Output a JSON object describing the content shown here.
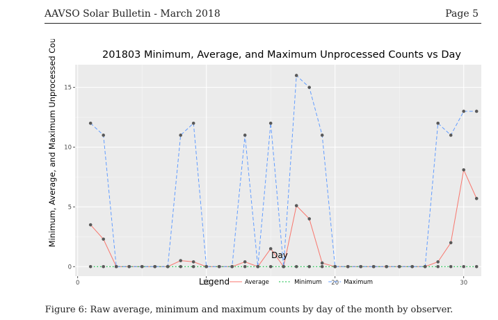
{
  "header": {
    "left": "AAVSO Solar Bulletin - March 2018",
    "right": "Page 5"
  },
  "caption": "Figure 6: Raw average, minimum and maximum counts by day of the month by observer.",
  "chart_data": {
    "type": "line",
    "title": "201803 Minimum, Average, and Maximum Unprocessed Counts vs Day",
    "xlabel": "Day",
    "ylabel": "Minimum, Average, and Maximum Unprocessed Counts",
    "xlim": [
      -0.2,
      31.8
    ],
    "ylim": [
      -0.8,
      16.9
    ],
    "xticks": [
      0,
      10,
      20,
      30
    ],
    "yticks": [
      0,
      5,
      10,
      15
    ],
    "grid": true,
    "legend": {
      "title": "Legend",
      "position": "bottom"
    },
    "x": [
      1,
      2,
      3,
      4,
      5,
      6,
      7,
      8,
      9,
      10,
      11,
      12,
      13,
      14,
      15,
      16,
      17,
      18,
      19,
      20,
      21,
      22,
      23,
      24,
      25,
      26,
      27,
      28,
      29,
      30,
      31
    ],
    "series": [
      {
        "name": "Average",
        "color": "#f8766d",
        "dash": "solid",
        "values": [
          3.5,
          2.3,
          0,
          0,
          0,
          0,
          0,
          0.5,
          0.4,
          0,
          0,
          0,
          0.4,
          0,
          1.5,
          0,
          5.1,
          4,
          0.3,
          0,
          0,
          0,
          0,
          0,
          0,
          0,
          0,
          0.4,
          2,
          8.1,
          5.7
        ]
      },
      {
        "name": "Minimum",
        "color": "#00ba38",
        "dash": "dotted",
        "values": [
          0,
          0,
          0,
          0,
          0,
          0,
          0,
          0,
          0,
          0,
          0,
          0,
          0,
          0,
          0,
          0,
          0,
          0,
          0,
          0,
          0,
          0,
          0,
          0,
          0,
          0,
          0,
          0,
          0,
          0,
          0
        ]
      },
      {
        "name": "Maximum",
        "color": "#619cff",
        "dash": "dashed",
        "values": [
          12,
          11,
          0,
          0,
          0,
          0,
          0,
          11,
          12,
          0,
          0,
          0,
          11,
          0,
          12,
          0,
          16,
          15,
          11,
          0,
          0,
          0,
          0,
          0,
          0,
          0,
          0,
          12,
          11,
          13,
          13
        ]
      }
    ]
  }
}
